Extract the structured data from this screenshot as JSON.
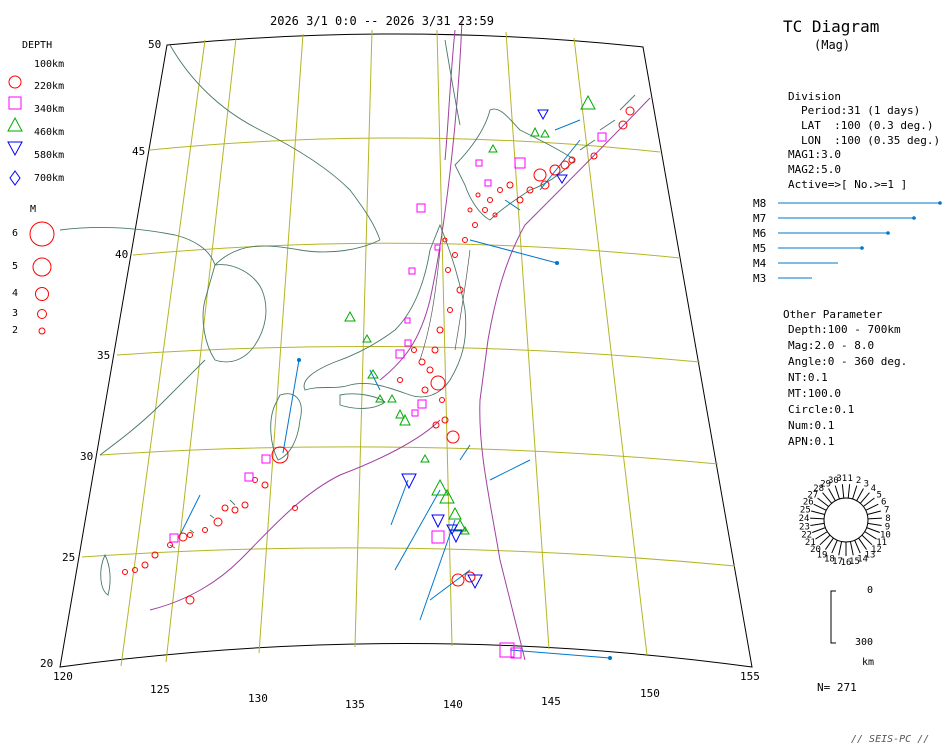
{
  "header": {
    "period": "2026 3/1 0:0 -- 2026 3/31 23:59",
    "title": "TC Diagram",
    "subtitle": "(Mag)"
  },
  "legend": {
    "depth_title": "DEPTH",
    "depth_items": [
      {
        "label": "100km",
        "symbol": "none",
        "color": "#000000"
      },
      {
        "label": "220km",
        "symbol": "circle",
        "color": "#ff0000"
      },
      {
        "label": "340km",
        "symbol": "square",
        "color": "#ff00ff"
      },
      {
        "label": "460km",
        "symbol": "triangle",
        "color": "#00aa00"
      },
      {
        "label": "580km",
        "symbol": "triangle-down",
        "color": "#0000ff"
      },
      {
        "label": "700km",
        "symbol": "diamond",
        "color": "#0000ff"
      }
    ],
    "mag_title": "M",
    "mag_items": [
      "6",
      "5",
      "4",
      "3",
      "2"
    ]
  },
  "map": {
    "lat_labels": [
      "50",
      "45",
      "40",
      "35",
      "30",
      "25",
      "20"
    ],
    "lon_labels": [
      "120",
      "125",
      "130",
      "135",
      "140",
      "145",
      "150",
      "155"
    ],
    "colors": {
      "graticule": "#b5b526",
      "coast": "#4a7a66",
      "plate": "#a040a0",
      "vector": "#0077cc"
    }
  },
  "division": {
    "title": "Division",
    "lines": [
      "Period:31 (1 days)",
      "LAT  :100 (0.3 deg.)",
      "LON  :100 (0.35 deg.)"
    ],
    "mag1": "MAG1:3.0",
    "mag2": "MAG2:5.0",
    "active": "Active=>[ No.>=1 ]"
  },
  "mag_scale": [
    "M8",
    "M7",
    "M6",
    "M5",
    "M4",
    "M3"
  ],
  "other": {
    "title": "Other Parameter",
    "lines": [
      "Depth:100 - 700km",
      "Mag:2.0 - 8.0",
      "Angle:0 - 360 deg.",
      "NT:0.1",
      "MT:100.0",
      "Circle:0.1",
      "Num:0.1",
      "APN:0.1"
    ]
  },
  "compass_numbers": [
    "1",
    "2",
    "3",
    "4",
    "5",
    "6",
    "7",
    "8",
    "9",
    "10",
    "11",
    "12",
    "13",
    "14",
    "15",
    "16",
    "17",
    "18",
    "19",
    "20",
    "21",
    "22",
    "23",
    "24",
    "25",
    "26",
    "27",
    "28",
    "29",
    "30",
    "31"
  ],
  "depth_scale": {
    "top": "0",
    "bottom": "300",
    "unit": "km"
  },
  "count": "N= 271",
  "footer": "// SEIS-PC //"
}
